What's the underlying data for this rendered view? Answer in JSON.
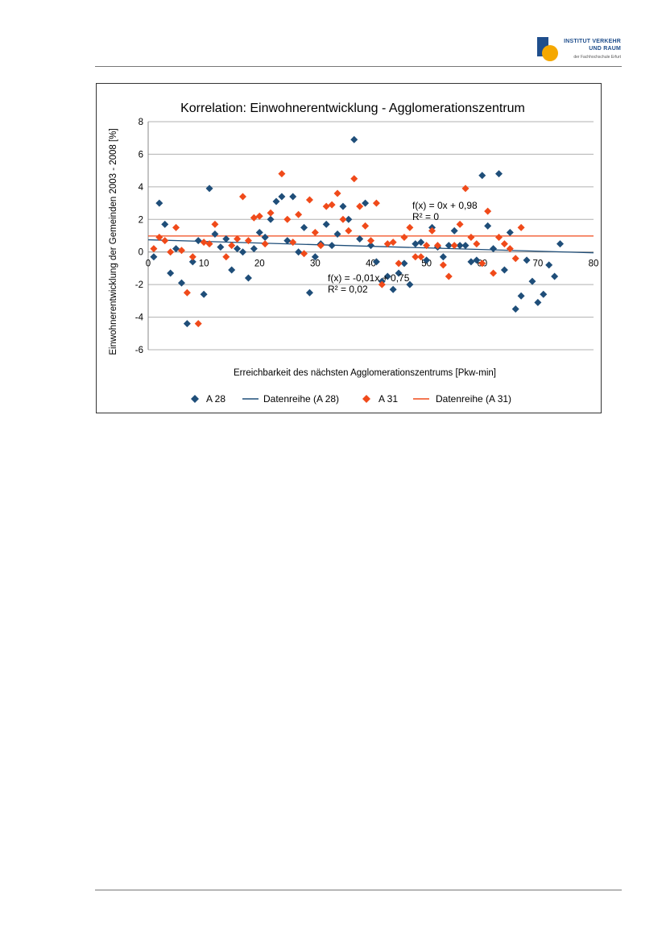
{
  "header": {
    "logo_line1": "INSTITUT VERKEHR",
    "logo_line2": "UND RAUM",
    "logo_line3": "der Fachhochschule Erfurt"
  },
  "colors": {
    "a28": "#1f4e79",
    "a31": "#f04a1a",
    "rule": "#777777"
  },
  "chart_data": {
    "type": "scatter",
    "title": "Korrelation: Einwohnerentwicklung - Agglomerationszentrum",
    "xlabel": "Erreichbarkeit des nächsten Agglomerationszentrums [Pkw-min]",
    "ylabel": "Einwohnerentwicklung der Gemeinden 2003 - 2008 [%]",
    "xlim": [
      0,
      80
    ],
    "ylim": [
      -6,
      8
    ],
    "x_ticks": [
      "0",
      "10",
      "20",
      "30",
      "40",
      "50",
      "60",
      "70",
      "80"
    ],
    "y_ticks": [
      "8",
      "6",
      "4",
      "2",
      "0",
      "-2",
      "-4",
      "-6"
    ],
    "grid": "horizontal",
    "legend_position": "bottom",
    "series": [
      {
        "name": "A 28",
        "marker": "diamond",
        "color": "#1f4e79",
        "points": [
          [
            1,
            -0.3
          ],
          [
            2,
            3.0
          ],
          [
            3,
            1.7
          ],
          [
            4,
            -1.3
          ],
          [
            5,
            0.2
          ],
          [
            6,
            -1.9
          ],
          [
            7,
            -4.4
          ],
          [
            8,
            -0.6
          ],
          [
            9,
            0.7
          ],
          [
            10,
            -2.6
          ],
          [
            11,
            3.9
          ],
          [
            12,
            1.1
          ],
          [
            13,
            0.3
          ],
          [
            14,
            0.8
          ],
          [
            15,
            -1.1
          ],
          [
            16,
            0.2
          ],
          [
            17,
            0.0
          ],
          [
            18,
            -1.6
          ],
          [
            19,
            0.2
          ],
          [
            20,
            1.2
          ],
          [
            21,
            0.9
          ],
          [
            22,
            2.0
          ],
          [
            23,
            3.1
          ],
          [
            24,
            3.4
          ],
          [
            25,
            0.7
          ],
          [
            26,
            3.4
          ],
          [
            27,
            0.0
          ],
          [
            28,
            1.5
          ],
          [
            29,
            -2.5
          ],
          [
            30,
            -0.3
          ],
          [
            31,
            0.5
          ],
          [
            32,
            1.7
          ],
          [
            33,
            0.4
          ],
          [
            34,
            1.1
          ],
          [
            35,
            2.8
          ],
          [
            36,
            2.0
          ],
          [
            37,
            6.9
          ],
          [
            38,
            0.8
          ],
          [
            39,
            3.0
          ],
          [
            40,
            0.4
          ],
          [
            41,
            -0.6
          ],
          [
            42,
            -1.8
          ],
          [
            43,
            -1.5
          ],
          [
            44,
            -2.3
          ],
          [
            45,
            -1.3
          ],
          [
            46,
            -0.7
          ],
          [
            47,
            -2.0
          ],
          [
            48,
            0.5
          ],
          [
            49,
            0.6
          ],
          [
            50,
            -0.5
          ],
          [
            51,
            1.5
          ],
          [
            52,
            0.3
          ],
          [
            53,
            -0.3
          ],
          [
            54,
            0.4
          ],
          [
            55,
            1.3
          ],
          [
            56,
            0.4
          ],
          [
            57,
            0.4
          ],
          [
            58,
            -0.6
          ],
          [
            59,
            -0.5
          ],
          [
            60,
            4.7
          ],
          [
            61,
            1.6
          ],
          [
            62,
            0.2
          ],
          [
            63,
            4.8
          ],
          [
            64,
            -1.1
          ],
          [
            65,
            1.2
          ],
          [
            66,
            -3.5
          ],
          [
            67,
            -2.7
          ],
          [
            68,
            -0.5
          ],
          [
            69,
            -1.8
          ],
          [
            70,
            -3.1
          ],
          [
            71,
            -2.6
          ],
          [
            72,
            -0.8
          ],
          [
            73,
            -1.5
          ],
          [
            74,
            0.5
          ]
        ]
      },
      {
        "name": "A 31",
        "marker": "diamond",
        "color": "#f04a1a",
        "points": [
          [
            1,
            0.2
          ],
          [
            2,
            0.9
          ],
          [
            3,
            0.7
          ],
          [
            4,
            0.0
          ],
          [
            5,
            1.5
          ],
          [
            6,
            0.1
          ],
          [
            7,
            -2.5
          ],
          [
            8,
            -0.3
          ],
          [
            9,
            -4.4
          ],
          [
            10,
            0.6
          ],
          [
            11,
            0.5
          ],
          [
            12,
            1.7
          ],
          [
            14,
            -0.3
          ],
          [
            15,
            0.4
          ],
          [
            16,
            0.8
          ],
          [
            17,
            3.4
          ],
          [
            18,
            0.7
          ],
          [
            19,
            2.1
          ],
          [
            20,
            2.2
          ],
          [
            21,
            0.5
          ],
          [
            22,
            2.4
          ],
          [
            24,
            4.8
          ],
          [
            25,
            2.0
          ],
          [
            26,
            0.6
          ],
          [
            27,
            2.3
          ],
          [
            28,
            -0.1
          ],
          [
            29,
            3.2
          ],
          [
            30,
            1.2
          ],
          [
            31,
            0.4
          ],
          [
            32,
            2.8
          ],
          [
            33,
            2.9
          ],
          [
            34,
            3.6
          ],
          [
            35,
            2.0
          ],
          [
            36,
            1.3
          ],
          [
            37,
            4.5
          ],
          [
            38,
            2.8
          ],
          [
            39,
            1.6
          ],
          [
            40,
            0.7
          ],
          [
            41,
            3.0
          ],
          [
            42,
            -2.0
          ],
          [
            43,
            0.5
          ],
          [
            44,
            0.6
          ],
          [
            45,
            -0.7
          ],
          [
            46,
            0.9
          ],
          [
            47,
            1.5
          ],
          [
            48,
            -0.3
          ],
          [
            49,
            -0.3
          ],
          [
            50,
            0.4
          ],
          [
            51,
            1.3
          ],
          [
            52,
            0.4
          ],
          [
            53,
            -0.8
          ],
          [
            54,
            -1.5
          ],
          [
            55,
            0.4
          ],
          [
            56,
            1.7
          ],
          [
            57,
            3.9
          ],
          [
            58,
            0.9
          ],
          [
            59,
            0.5
          ],
          [
            60,
            -0.7
          ],
          [
            61,
            2.5
          ],
          [
            62,
            -1.3
          ],
          [
            63,
            0.9
          ],
          [
            64,
            0.5
          ],
          [
            65,
            0.2
          ],
          [
            66,
            -0.4
          ],
          [
            67,
            1.5
          ]
        ]
      },
      {
        "name": "Datenreihe (A 28)",
        "type": "trendline",
        "color": "#1f4e79",
        "slope": -0.01,
        "intercept": 0.75,
        "equation": "f(x) = -0,01x + 0,75",
        "r2": "R² = 0,02"
      },
      {
        "name": "Datenreihe (A 31)",
        "type": "trendline",
        "color": "#f04a1a",
        "slope": 0,
        "intercept": 0.98,
        "equation": "f(x) = 0x + 0,98",
        "r2": "R² = 0"
      }
    ]
  }
}
